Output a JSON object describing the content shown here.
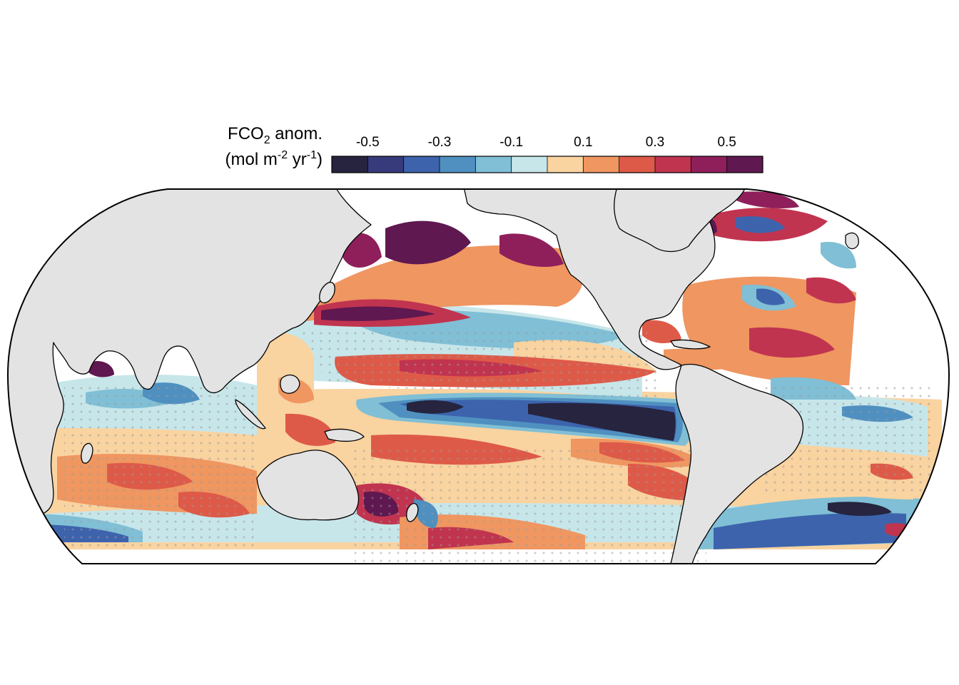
{
  "legend": {
    "title_main": "FCO",
    "title_sub": "2",
    "title_rest": " anom.",
    "units_open": "(mol m",
    "units_exp1": "-2",
    "units_mid": " yr",
    "units_exp2": "-1",
    "units_close": ")",
    "tick_labels": [
      "-0.5",
      "-0.3",
      "-0.1",
      "0.1",
      "0.3",
      "0.5"
    ],
    "bins": [
      -0.6,
      -0.5,
      -0.4,
      -0.3,
      -0.2,
      -0.1,
      0.0,
      0.1,
      0.2,
      0.3,
      0.4,
      0.5,
      0.6
    ],
    "colors": [
      "#26243e",
      "#373a7b",
      "#3d63ad",
      "#4f90c0",
      "#80bfd5",
      "#c7e6ea",
      "#f9d3a0",
      "#ef9661",
      "#de5a48",
      "#c1344f",
      "#8f1f5b",
      "#5f1850"
    ]
  },
  "map": {
    "projection": "equal-earth-pacific",
    "land_color": "#e3e3e3",
    "coast_color": "#000000",
    "stipple_color": "#9a9a9a"
  }
}
